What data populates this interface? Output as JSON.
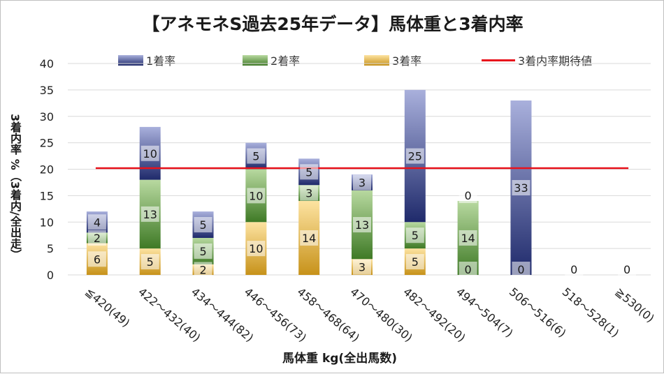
{
  "chart_data": {
    "type": "bar",
    "stacked": true,
    "title": "【アネモネS過去25年データ】馬体重と3着内率",
    "xlabel": "馬体重 kg(全出馬数)",
    "ylabel": "3着内率 %（3着内/全出走）",
    "ylim": [
      0,
      40
    ],
    "yticks": [
      "0",
      "5",
      "10",
      "15",
      "20",
      "25",
      "30",
      "35",
      "40"
    ],
    "grid": true,
    "legend_position": "top",
    "categories": [
      "≦420(49)",
      "422～432(40)",
      "434～444(82)",
      "446～456(73)",
      "458～468(64)",
      "470～480(30)",
      "482～492(20)",
      "494～504(7)",
      "506～516(6)",
      "518～528(1)",
      "≧530(0)"
    ],
    "series": [
      {
        "name": "3着率",
        "color": "#d9a72e",
        "values": [
          6,
          5,
          2,
          10,
          14,
          3,
          5,
          0,
          0,
          0,
          0
        ],
        "labels": [
          "6",
          "5",
          "2",
          "10",
          "14",
          "3",
          "5",
          "0",
          "0",
          "0",
          "0"
        ]
      },
      {
        "name": "2着率",
        "color": "#4e8a34",
        "values": [
          2,
          13,
          5,
          10,
          3,
          13,
          5,
          14,
          0,
          0,
          0
        ],
        "labels": [
          "2",
          "13",
          "5",
          "10",
          "3",
          "13",
          "5",
          "14",
          "",
          "",
          ""
        ]
      },
      {
        "name": "1着率",
        "color": "#1f2a6b",
        "values": [
          4,
          10,
          5,
          5,
          5,
          3,
          25,
          0,
          33,
          0,
          0
        ],
        "labels": [
          "4",
          "10",
          "5",
          "5",
          "5",
          "3",
          "25",
          "0",
          "33",
          "",
          ""
        ]
      }
    ],
    "legend_order": [
      "1着率",
      "2着率",
      "3着率",
      "3着内率期待値"
    ],
    "reference_line": {
      "name": "3着内率期待値",
      "value": 20.2,
      "color": "#e8121b"
    }
  }
}
